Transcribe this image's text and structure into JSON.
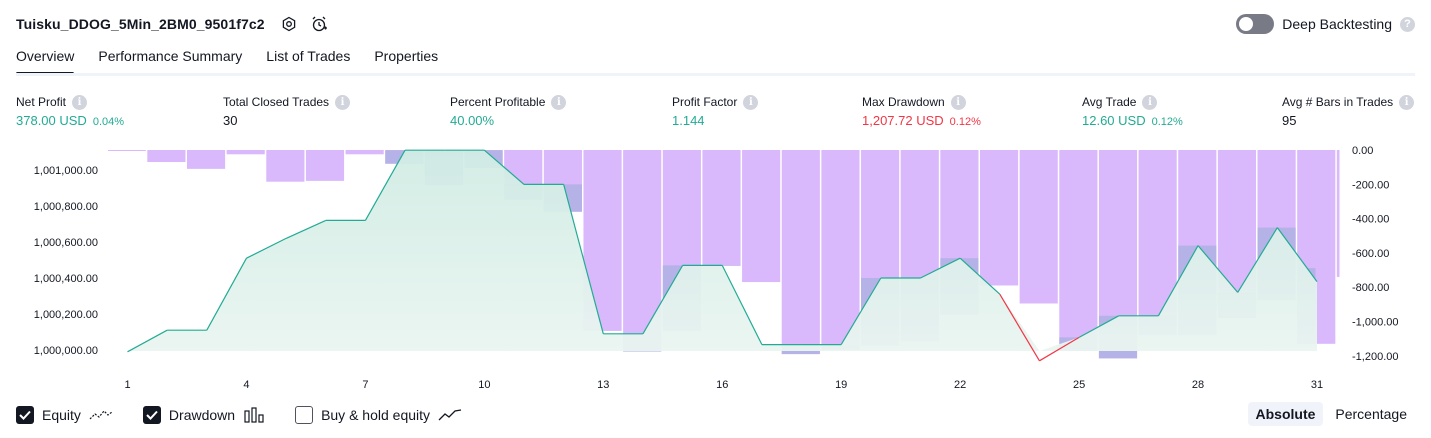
{
  "header": {
    "strategy_name": "Tuisku_DDOG_5Min_2BM0_9501f7c2",
    "deep_backtesting_label": "Deep Backtesting",
    "deep_backtesting_enabled": false,
    "help_glyph": "?"
  },
  "tabs": [
    {
      "label": "Overview",
      "active": true
    },
    {
      "label": "Performance Summary",
      "active": false
    },
    {
      "label": "List of Trades",
      "active": false
    },
    {
      "label": "Properties",
      "active": false
    }
  ],
  "metrics": [
    {
      "label": "Net Profit",
      "value": "378.00 USD",
      "pct": "0.04%",
      "color": "green"
    },
    {
      "label": "Total Closed Trades",
      "value": "30",
      "pct": "",
      "color": "dark"
    },
    {
      "label": "Percent Profitable",
      "value": "40.00%",
      "pct": "",
      "color": "green"
    },
    {
      "label": "Profit Factor",
      "value": "1.144",
      "pct": "",
      "color": "green"
    },
    {
      "label": "Max Drawdown",
      "value": "1,207.72 USD",
      "pct": "0.12%",
      "color": "red"
    },
    {
      "label": "Avg Trade",
      "value": "12.60 USD",
      "pct": "0.12%",
      "color": "green"
    },
    {
      "label": "Avg # Bars in Trades",
      "value": "95",
      "pct": "",
      "color": "dark"
    }
  ],
  "info_glyph": "i",
  "chart_data": {
    "type": "line",
    "equity": {
      "name": "Equity",
      "x": [
        1,
        2,
        3,
        4,
        5,
        6,
        7,
        8,
        9,
        10,
        11,
        12,
        13,
        14,
        15,
        16,
        17,
        18,
        19,
        20,
        21,
        22,
        23,
        24,
        25,
        26,
        27,
        28,
        29,
        30,
        31
      ],
      "values": [
        999990,
        1000110,
        1000110,
        1000510,
        1000620,
        1000720,
        1000720,
        1001110,
        1001110,
        1001110,
        1000920,
        1000920,
        1000090,
        1000090,
        1000470,
        1000470,
        1000030,
        1000030,
        1000030,
        1000400,
        1000400,
        1000510,
        1000310,
        999940,
        1000070,
        1000190,
        1000190,
        1000580,
        1000320,
        1000680,
        1000380
      ],
      "negative_segment_index": 23,
      "color": "#22ab94",
      "negative_color": "#f23645",
      "fill_top": "#d1ece4",
      "fill_bottom": "#eaf5f1"
    },
    "drawdown": {
      "name": "Drawdown",
      "values": [
        -0.5,
        -70,
        -110,
        -25,
        -185,
        -180,
        -25,
        -80,
        -205,
        -105,
        -290,
        -360,
        -1055,
        -1175,
        -1055,
        -675,
        -770,
        -1190,
        -1165,
        -1140,
        -1115,
        -960,
        -790,
        -895,
        -1170,
        -1215,
        -1080,
        -1080,
        -980,
        -875,
        -1130,
        -740
      ],
      "color": "#d9b8fb",
      "overlap_color": "#a8b0e0",
      "edge_x": [
        0.5,
        1.5,
        2.5,
        3.5,
        4.5,
        5.5,
        6.5,
        7.5,
        8.5,
        9.5,
        10.5,
        11.5,
        12.5,
        13.5,
        14.5,
        15.5,
        16.5,
        17.5,
        18.5,
        19.5,
        20.5,
        21.5,
        22.5,
        23.5,
        24.5,
        25.5,
        26.5,
        27.5,
        28.5,
        29.5,
        30.5,
        31.5
      ]
    },
    "left_axis": {
      "ticks": [
        1000000,
        1000200,
        1000400,
        1000600,
        1000800,
        1001000
      ],
      "labels": [
        "1,000,000.00",
        "1,000,200.00",
        "1,000,400.00",
        "1,000,600.00",
        "1,000,800.00",
        "1,001,000.00"
      ]
    },
    "right_axis": {
      "ticks": [
        0,
        -200,
        -400,
        -600,
        -800,
        -1000,
        -1200
      ],
      "labels": [
        "0.00",
        "-200.00",
        "-400.00",
        "-600.00",
        "-800.00",
        "-1,000.00",
        "-1,200.00"
      ]
    },
    "x_ticks": [
      1,
      4,
      7,
      10,
      13,
      16,
      19,
      22,
      25,
      28,
      31
    ],
    "x_labels": [
      "1",
      "4",
      "7",
      "10",
      "13",
      "16",
      "19",
      "22",
      "25",
      "28",
      "31"
    ]
  },
  "footer": {
    "checkboxes": [
      {
        "label": "Equity",
        "checked": true,
        "icon": "equity-line-icon"
      },
      {
        "label": "Drawdown",
        "checked": true,
        "icon": "drawdown-bars-icon"
      },
      {
        "label": "Buy & hold equity",
        "checked": false,
        "icon": "buy-hold-line-icon"
      }
    ],
    "modes": [
      {
        "label": "Absolute",
        "active": true
      },
      {
        "label": "Percentage",
        "active": false
      }
    ]
  }
}
